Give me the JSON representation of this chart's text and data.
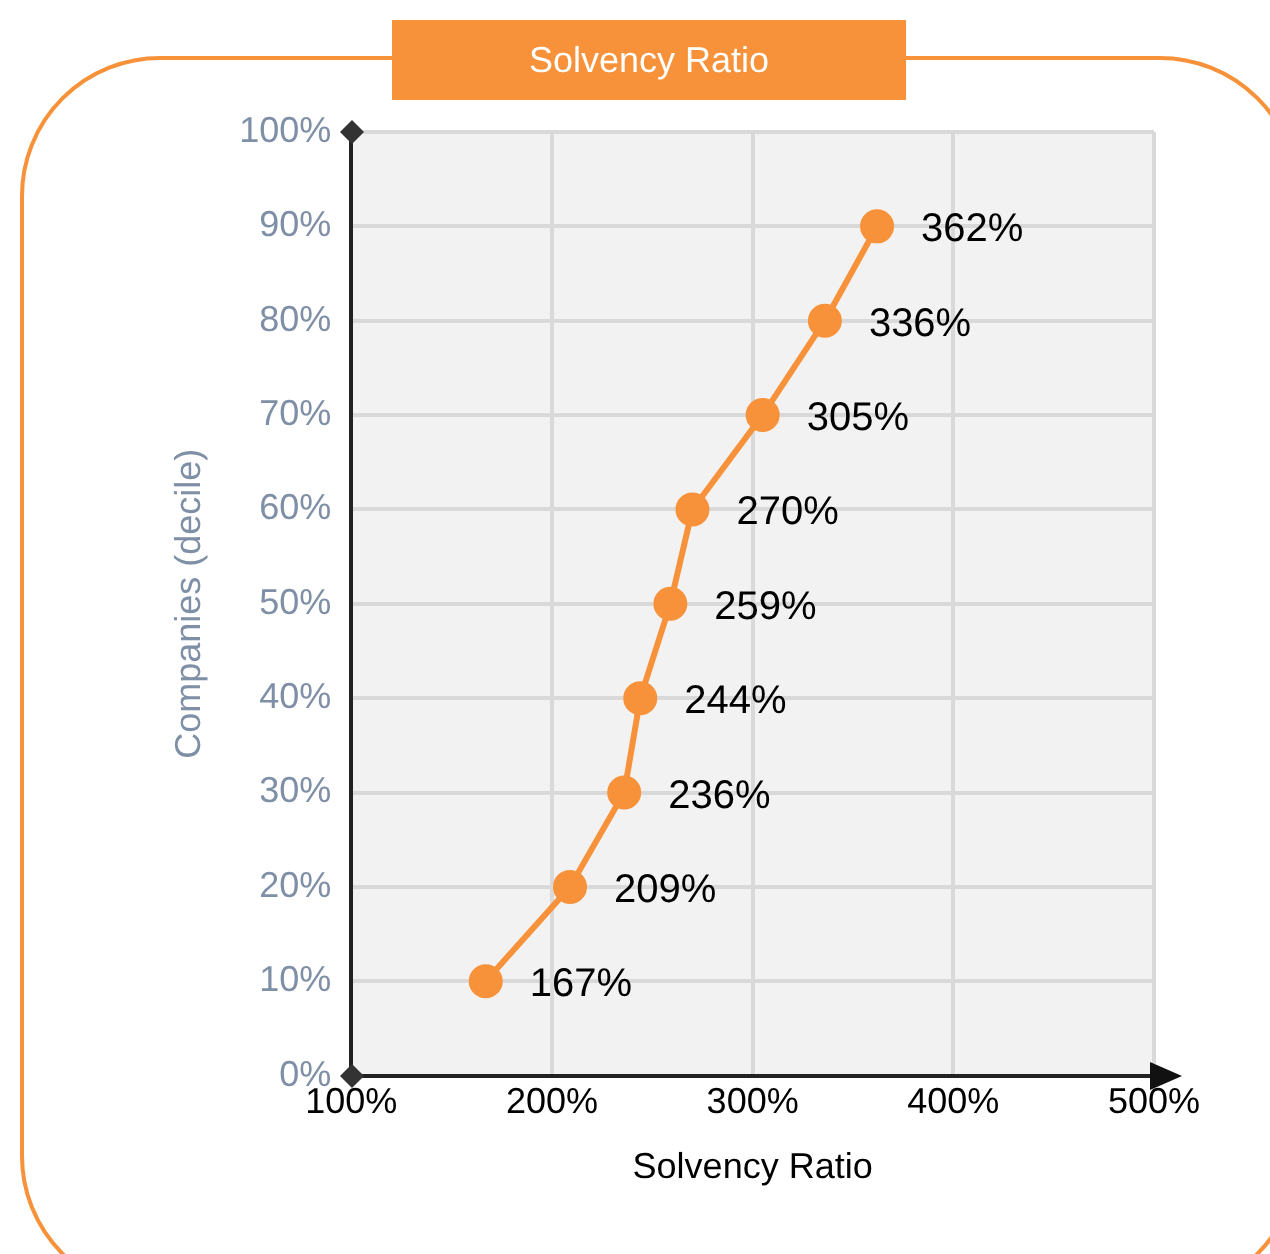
{
  "chart_data": {
    "type": "line",
    "title": "Solvency Ratio",
    "xlabel": "Solvency Ratio",
    "ylabel": "Companies (decile)",
    "x": [
      167,
      209,
      236,
      244,
      259,
      270,
      305,
      336,
      362
    ],
    "series": [
      {
        "color": "#f7923a",
        "values": [
          10,
          20,
          30,
          40,
          50,
          60,
          70,
          80,
          90
        ]
      }
    ],
    "annotations": [
      {
        "text": "167%",
        "x": 167,
        "y": 10
      },
      {
        "text": "209%",
        "x": 209,
        "y": 20
      },
      {
        "text": "236%",
        "x": 236,
        "y": 30
      },
      {
        "text": "244%",
        "x": 244,
        "y": 40
      },
      {
        "text": "259%",
        "x": 259,
        "y": 50
      },
      {
        "text": "270%",
        "x": 270,
        "y": 60
      },
      {
        "text": "305%",
        "x": 305,
        "y": 70
      },
      {
        "text": "336%",
        "x": 336,
        "y": 80
      },
      {
        "text": "362%",
        "x": 362,
        "y": 90
      }
    ],
    "xlim": [
      100,
      500
    ],
    "xticks": [
      {
        "value": 100,
        "label": "100%"
      },
      {
        "value": 200,
        "label": "200%"
      },
      {
        "value": 300,
        "label": "300%"
      },
      {
        "value": 400,
        "label": "400%"
      },
      {
        "value": 500,
        "label": "500%"
      }
    ],
    "ylim": [
      0,
      100
    ],
    "yticks": [
      {
        "value": 0,
        "label": "0%"
      },
      {
        "value": 10,
        "label": "10%"
      },
      {
        "value": 20,
        "label": "20%"
      },
      {
        "value": 30,
        "label": "30%"
      },
      {
        "value": 40,
        "label": "40%"
      },
      {
        "value": 50,
        "label": "50%"
      },
      {
        "value": 60,
        "label": "60%"
      },
      {
        "value": 70,
        "label": "70%"
      },
      {
        "value": 80,
        "label": "80%"
      },
      {
        "value": 90,
        "label": "90%"
      },
      {
        "value": 100,
        "label": "100%"
      }
    ],
    "grid": true,
    "legend": false,
    "marker": "circle",
    "line_style": "solid"
  }
}
